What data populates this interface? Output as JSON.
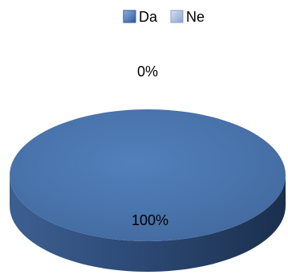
{
  "chart_data": {
    "type": "pie",
    "style": "3d",
    "legend_position": "top",
    "categories": [
      "Da",
      "Ne"
    ],
    "values": [
      100,
      0
    ],
    "data_labels": [
      "100%",
      "0%"
    ],
    "colors": {
      "Da": "#4a76b0",
      "Ne": "#9fb4d8"
    }
  }
}
